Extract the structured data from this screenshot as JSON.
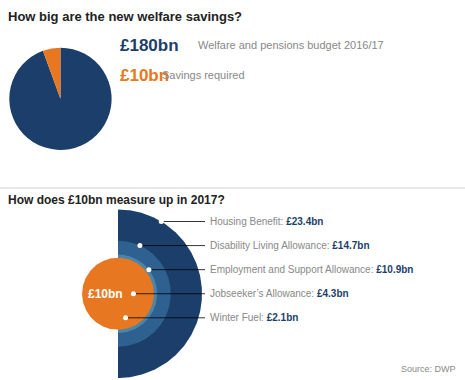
{
  "chart_data": [
    {
      "type": "pie",
      "title": "How big are the new welfare savings?",
      "values": [
        170,
        10
      ],
      "colors": [
        "#1b3f6a",
        "#e87722"
      ],
      "annotations": [
        {
          "label": "£180bn",
          "text": "Welfare and pensions budget 2016/17",
          "color": "#1b3f6a"
        },
        {
          "label": "£10bn",
          "text": "Savings required",
          "color": "#e87722"
        }
      ]
    },
    {
      "type": "rings",
      "title": "How does £10bn measure up in 2017?",
      "categories": [
        "Housing Benefit: ",
        "Disability Living Allowance: ",
        "Employment and Support Allowance: ",
        "Jobseeker’s Allowance: ",
        "Winter Fuel: "
      ],
      "values": [
        23.4,
        14.7,
        10.9,
        4.3,
        2.1
      ],
      "value_labels": [
        "£23.4bn",
        "£14.7bn",
        "£10.9bn",
        "£4.3bn",
        "£2.1bn"
      ],
      "colors": [
        "#1b3f6a",
        "#2e6090",
        "#4a85aa",
        "#7ab0c8",
        "#a8cdd9"
      ],
      "data_labels": true,
      "reference": {
        "value": 10,
        "label": "£10bn",
        "color": "#e87722"
      },
      "annotations": [
        "Source: DWP"
      ]
    }
  ]
}
